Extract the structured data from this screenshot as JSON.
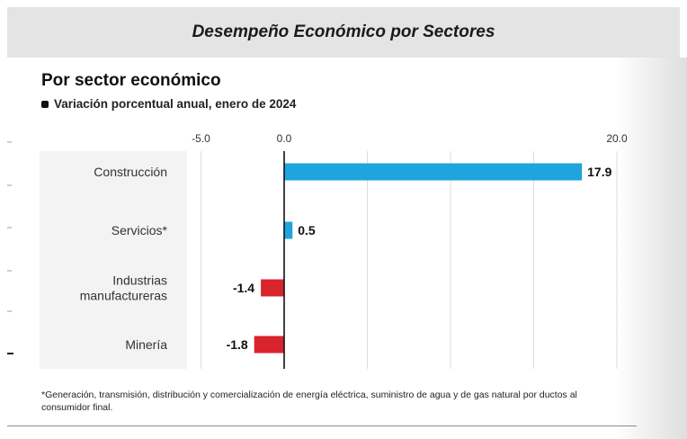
{
  "banner": {
    "title": "Desempeño Económico por Sectores"
  },
  "header": {
    "title": "Por sector económico",
    "subtitle": "Variación porcentual anual, enero de 2024"
  },
  "footnote": "*Generación, transmisión, distribución y comercialización de energía eléctrica, suministro de agua y de gas natural por ductos al consumidor final.",
  "colors": {
    "positive": "#1fa4dc",
    "negative": "#d9232d",
    "banner_bg": "#e4e4e4"
  },
  "chart_data": {
    "type": "bar",
    "orientation": "horizontal",
    "title": "Por sector económico",
    "subtitle": "Variación porcentual anual, enero de 2024",
    "categories": [
      "Construcción",
      "Servicios*",
      "Industrias manufactureras",
      "Minería"
    ],
    "category_lines": [
      [
        "Construcción"
      ],
      [
        "Servicios*"
      ],
      [
        "Industrias",
        "manufactureras"
      ],
      [
        "Minería"
      ]
    ],
    "values": [
      17.9,
      0.5,
      -1.4,
      -1.8
    ],
    "value_labels": [
      "17.9",
      "0.5",
      "-1.4",
      "-1.8"
    ],
    "xlim": [
      -5.0,
      20.0
    ],
    "xticks": [
      -5.0,
      0.0,
      20.0
    ],
    "xtick_labels": [
      "-5.0",
      "0.0",
      "20.0"
    ],
    "grid": true,
    "legend": "none"
  }
}
